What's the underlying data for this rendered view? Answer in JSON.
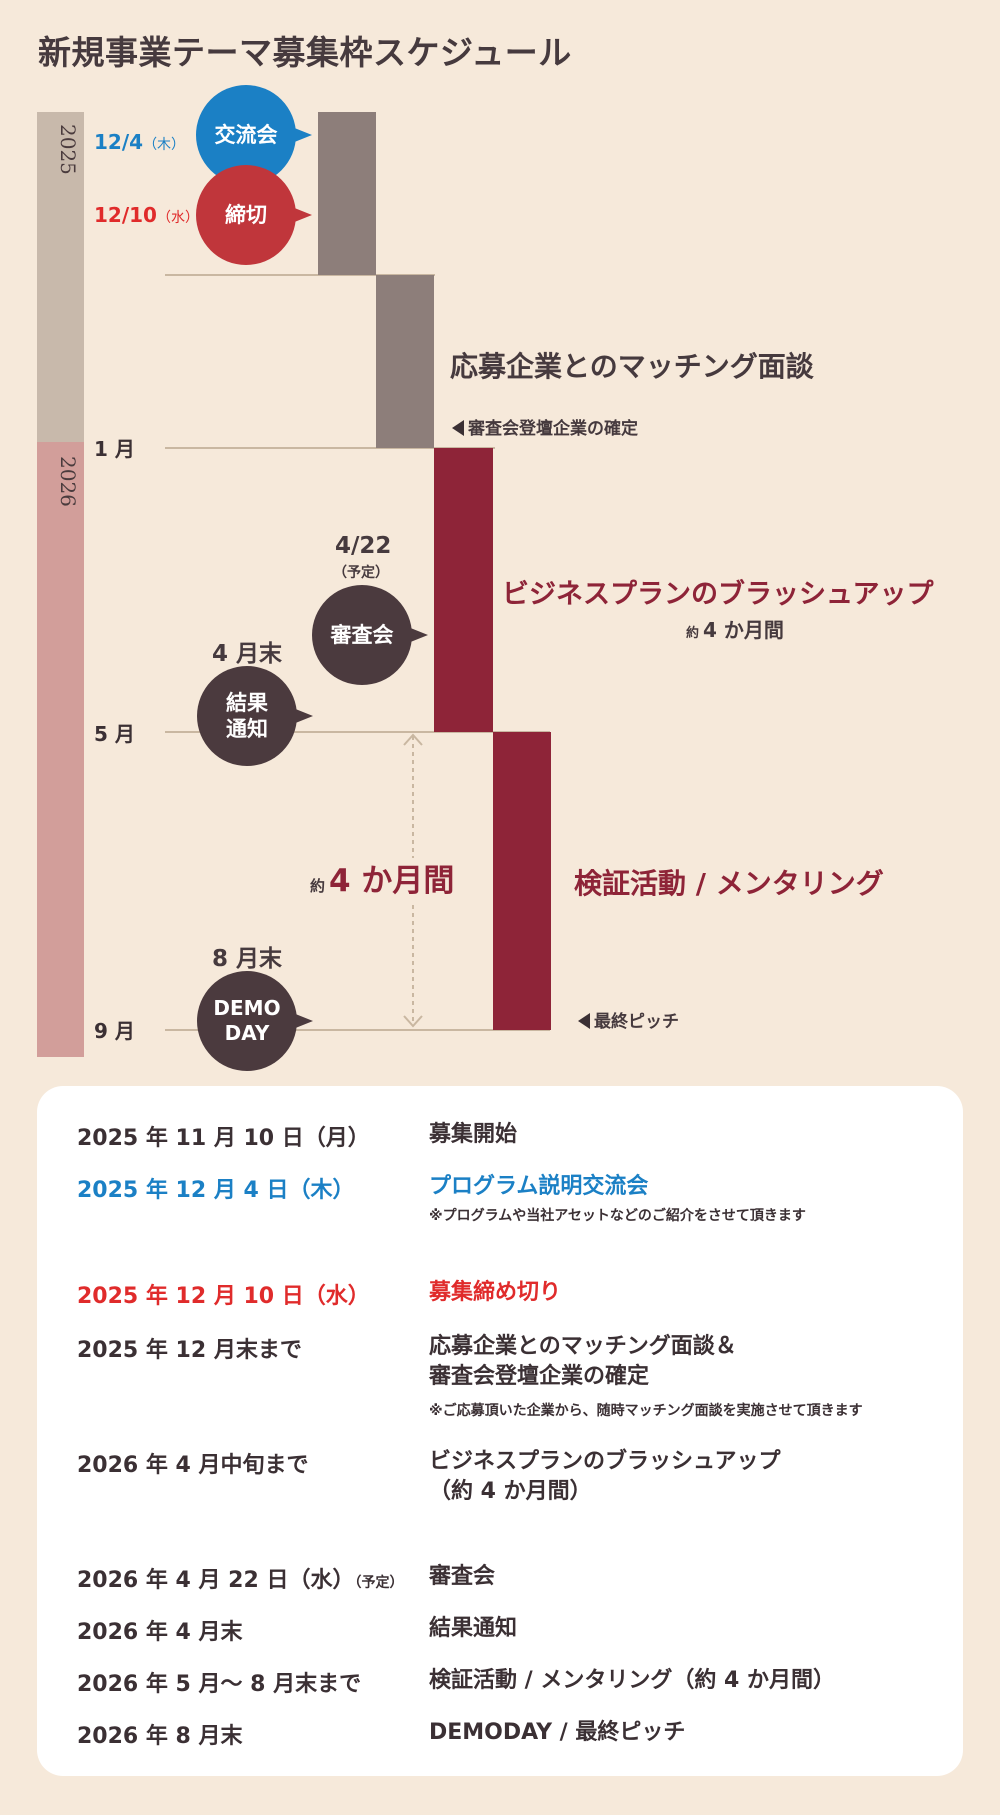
{
  "title": "新規事業テーマ募集枠スケジュール",
  "years": {
    "y2025": "2025",
    "y2026": "2026"
  },
  "months": {
    "jan": "1 月",
    "may": "5 月",
    "sep": "9 月"
  },
  "events": {
    "exchange": {
      "date": "12/4",
      "weekday": "（木）",
      "label": "交流会",
      "color": "#1b80c5"
    },
    "deadline": {
      "date": "12/10",
      "weekday": "（水）",
      "label": "締切",
      "color": "#c0363b"
    },
    "review": {
      "date": "4/22",
      "sub": "（予定）",
      "label": "審査会"
    },
    "result": {
      "date": "4 月末",
      "label_line1": "結果",
      "label_line2": "通知"
    },
    "demo": {
      "date": "8 月末",
      "label_line1": "DEMO",
      "label_line2": "DAY"
    }
  },
  "phases": {
    "matching": "応募企業とのマッチング面談",
    "matching_note": "審査会登壇企業の確定",
    "brushup": "ビジネスプランのブラッシュアップ",
    "brushup_approx": "約",
    "brushup_duration": "4 か月間",
    "verify": "検証活動 / メンタリング",
    "verify_approx": "約",
    "verify_duration": "4 か月間",
    "pitch_note": "最終ピッチ"
  },
  "colors": {
    "bar_gray": "#8d7e7a",
    "bar_red": "#8e2438",
    "circle_dark": "#4b3a3e",
    "year_2025_bar": "#c8b9ab",
    "year_2026_bar": "#d29e9a"
  },
  "schedule": [
    {
      "date": "2025 年 11 月 10 日（月）",
      "event": "募集開始"
    },
    {
      "date": "2025 年 12 月 4 日（木）",
      "event": "プログラム説明交流会",
      "note": "※プログラムや当社アセットなどのご紹介をさせて頂きます"
    },
    {
      "date": "2025 年 12 月 10 日（水）",
      "event": "募集締め切り"
    },
    {
      "date": "2025 年 12 月末まで",
      "event_line1": "応募企業とのマッチング面談＆",
      "event_line2": "審査会登壇企業の確定",
      "note": "※ご応募頂いた企業から、随時マッチング面談を実施させて頂きます"
    },
    {
      "date": "2026 年 4 月中旬まで",
      "event_line1": "ビジネスプランのブラッシュアップ",
      "event_line2": "（約 4 か月間）"
    },
    {
      "date": "2026 年 4 月 22 日（水）",
      "date_sub": "（予定）",
      "event": "審査会"
    },
    {
      "date": "2026 年 4 月末",
      "event": "結果通知"
    },
    {
      "date": "2026 年 5 月〜 8 月末まで",
      "event": "検証活動 / メンタリング（約 4 か月間）"
    },
    {
      "date": "2026 年 8 月末",
      "event": "DEMODAY / 最終ピッチ"
    }
  ]
}
